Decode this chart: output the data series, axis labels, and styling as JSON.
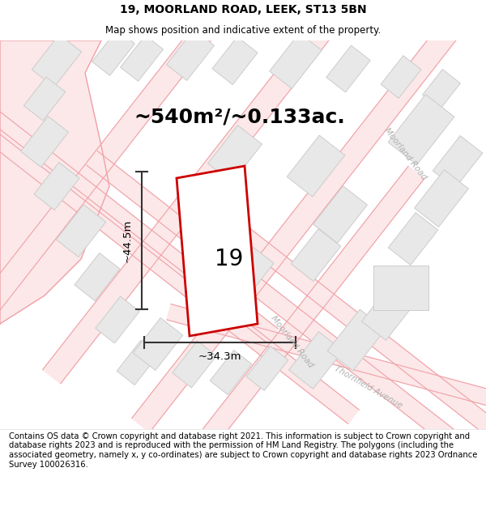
{
  "title_line1": "19, MOORLAND ROAD, LEEK, ST13 5BN",
  "title_line2": "Map shows position and indicative extent of the property.",
  "area_label": "~540m²/~0.133ac.",
  "dim_h": "~44.5m",
  "dim_w": "~34.3m",
  "plot_number": "19",
  "footnote": "Contains OS data © Crown copyright and database right 2021. This information is subject to Crown copyright and database rights 2023 and is reproduced with the permission of HM Land Registry. The polygons (including the associated geometry, namely x, y co-ordinates) are subject to Crown copyright and database rights 2023 Ordnance Survey 100026316.",
  "bg_color": "#f9f9f9",
  "plot_outline_color": "#cc0000",
  "dim_line_color": "#333333",
  "road_fill_color": "#fce8e8",
  "road_line_color": "#f0a0a8",
  "building_fill": "#e8e8e8",
  "building_edge": "#cccccc",
  "pink_lot_fill": "#fce8e8",
  "pink_lot_edge": "#f0a0a8",
  "title_fontsize": 10,
  "subtitle_fontsize": 8.5,
  "area_fontsize": 18,
  "plot_num_fontsize": 20,
  "dim_fontsize": 9.5,
  "road_label_fontsize": 7.5,
  "footnote_fontsize": 7.2
}
